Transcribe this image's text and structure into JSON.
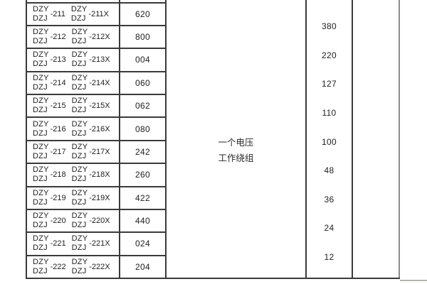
{
  "document": {
    "note": {
      "line1": "一个电压",
      "line2": "工作绕组"
    },
    "rows": [
      {
        "brand_top": "DZY",
        "brand_bottom": "DZJ",
        "suffix": "-211",
        "brand2_top": "DZY",
        "brand2_bottom": "DZJ",
        "suffix2": "-211X",
        "code": "620"
      },
      {
        "brand_top": "DZY",
        "brand_bottom": "DZJ",
        "suffix": "-212",
        "brand2_top": "DZY",
        "brand2_bottom": "DZJ",
        "suffix2": "-212X",
        "code": "800"
      },
      {
        "brand_top": "DZY",
        "brand_bottom": "DZJ",
        "suffix": "-213",
        "brand2_top": "DZY",
        "brand2_bottom": "DZJ",
        "suffix2": "-213X",
        "code": "004"
      },
      {
        "brand_top": "DZY",
        "brand_bottom": "DZJ",
        "suffix": "-214",
        "brand2_top": "DZY",
        "brand2_bottom": "DZJ",
        "suffix2": "-214X",
        "code": "060"
      },
      {
        "brand_top": "DZY",
        "brand_bottom": "DZJ",
        "suffix": "-215",
        "brand2_top": "DZY",
        "brand2_bottom": "DZJ",
        "suffix2": "-215X",
        "code": "062"
      },
      {
        "brand_top": "DZY",
        "brand_bottom": "DZJ",
        "suffix": "-216",
        "brand2_top": "DZY",
        "brand2_bottom": "DZJ",
        "suffix2": "-216X",
        "code": "080"
      },
      {
        "brand_top": "DZY",
        "brand_bottom": "DZJ",
        "suffix": "-217",
        "brand2_top": "DZY",
        "brand2_bottom": "DZJ",
        "suffix2": "-217X",
        "code": "242"
      },
      {
        "brand_top": "DZY",
        "brand_bottom": "DZJ",
        "suffix": "-218",
        "brand2_top": "DZY",
        "brand2_bottom": "DZJ",
        "suffix2": "-218X",
        "code": "260"
      },
      {
        "brand_top": "DZY",
        "brand_bottom": "DZJ",
        "suffix": "-219",
        "brand2_top": "DZY",
        "brand2_bottom": "DZJ",
        "suffix2": "-219X",
        "code": "422"
      },
      {
        "brand_top": "DZY",
        "brand_bottom": "DZJ",
        "suffix": "-220",
        "brand2_top": "DZY",
        "brand2_bottom": "DZJ",
        "suffix2": "-220X",
        "code": "440"
      },
      {
        "brand_top": "DZY",
        "brand_bottom": "DZJ",
        "suffix": "-221",
        "brand2_top": "DZY",
        "brand2_bottom": "DZJ",
        "suffix2": "-221X",
        "code": "024"
      },
      {
        "brand_top": "DZY",
        "brand_bottom": "DZJ",
        "suffix": "-222",
        "brand2_top": "DZY",
        "brand2_bottom": "DZJ",
        "suffix2": "-222X",
        "code": "204"
      }
    ],
    "voltages": [
      "380",
      "220",
      "127",
      "110",
      "100",
      "48",
      "36",
      "24",
      "12"
    ],
    "colors": {
      "border_dark": "#3a3a3a",
      "border_gray": "#8f8b87",
      "text": "#1d1d1d",
      "background": "#ffffff"
    }
  }
}
